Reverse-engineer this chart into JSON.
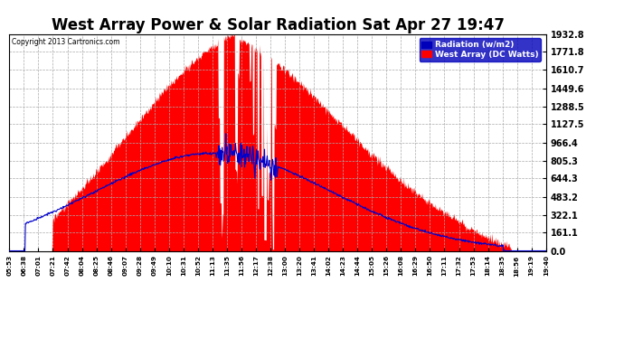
{
  "title": "West Array Power & Solar Radiation Sat Apr 27 19:47",
  "copyright": "Copyright 2013 Cartronics.com",
  "ylabel_right": [
    "1932.8",
    "1771.8",
    "1610.7",
    "1449.6",
    "1288.5",
    "1127.5",
    "966.4",
    "805.3",
    "644.3",
    "483.2",
    "322.1",
    "161.1",
    "0.0"
  ],
  "ytick_vals": [
    1932.8,
    1771.8,
    1610.7,
    1449.6,
    1288.5,
    1127.5,
    966.4,
    805.3,
    644.3,
    483.2,
    322.1,
    161.1,
    0.0
  ],
  "ymax": 1932.8,
  "ymin": 0.0,
  "background_color": "#ffffff",
  "plot_bg_color": "#ffffff",
  "grid_color": "#aaaaaa",
  "fill_color": "#ff0000",
  "line_color": "#0000cc",
  "title_fontsize": 12,
  "legend_labels": [
    "Radiation (w/m2)",
    "West Array (DC Watts)"
  ],
  "legend_bg_color": "#0000bb",
  "legend_text_color": "#ffffff",
  "legend_item2_color": "#ff0000",
  "x_tick_labels": [
    "05:53",
    "06:38",
    "07:01",
    "07:21",
    "07:42",
    "08:04",
    "08:25",
    "08:46",
    "09:07",
    "09:28",
    "09:49",
    "10:10",
    "10:31",
    "10:52",
    "11:13",
    "11:35",
    "11:56",
    "12:17",
    "12:38",
    "13:00",
    "13:20",
    "13:41",
    "14:02",
    "14:23",
    "14:44",
    "15:05",
    "15:26",
    "16:08",
    "16:29",
    "16:50",
    "17:11",
    "17:32",
    "17:53",
    "18:14",
    "18:35",
    "18:56",
    "19:19",
    "19:40"
  ]
}
